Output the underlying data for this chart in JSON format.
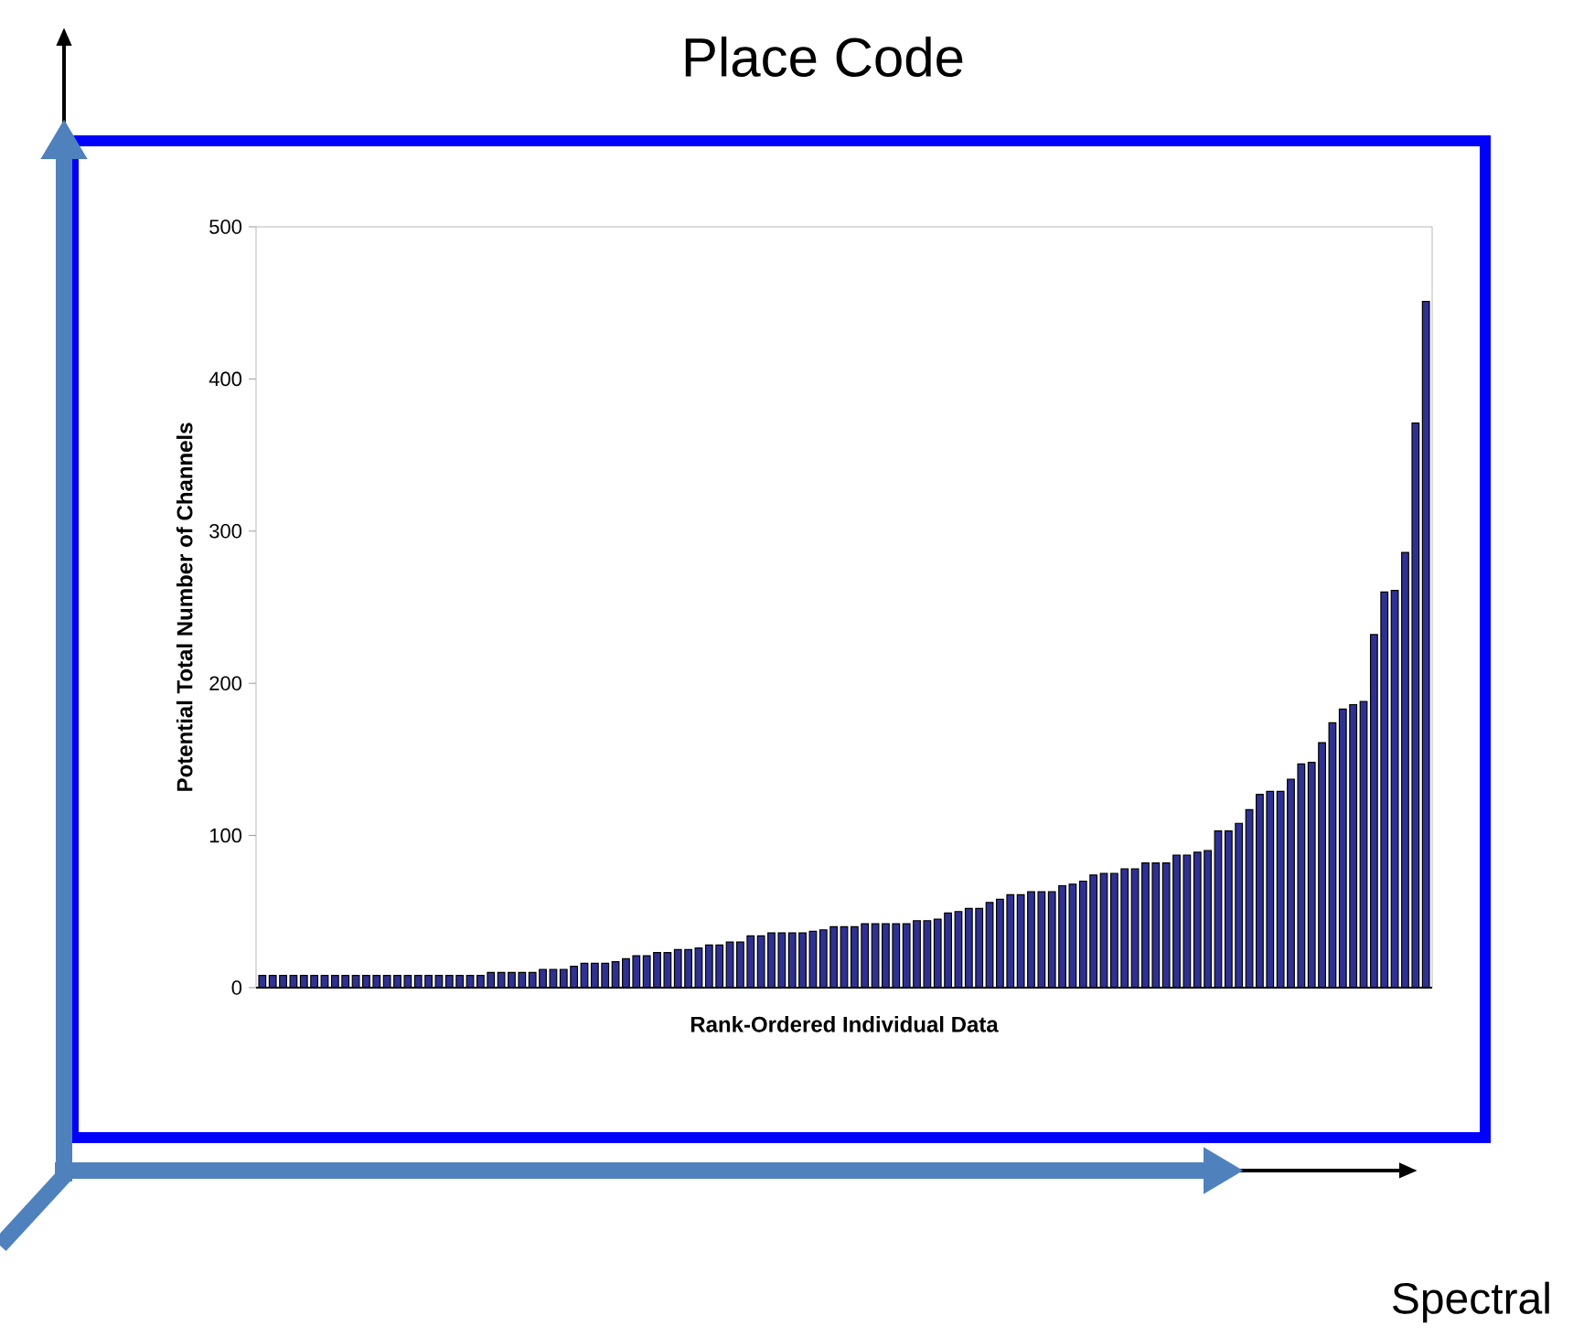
{
  "chart_data": {
    "type": "bar",
    "title": "Place Code",
    "xlabel": "Rank-Ordered Individual Data",
    "ylabel": "Potential Total Number of Channels",
    "annotations": [
      "Spectral"
    ],
    "categories": [
      null,
      null,
      null,
      null,
      null,
      null,
      null,
      null,
      null,
      null,
      null,
      null,
      null,
      null,
      null,
      null,
      null,
      null,
      null,
      null,
      null,
      null,
      null,
      null,
      null,
      null,
      null,
      null,
      null,
      null,
      null,
      null,
      null,
      null,
      null,
      null,
      null,
      null,
      null,
      null,
      null,
      null,
      null,
      null,
      null,
      null,
      null,
      null,
      null,
      null,
      null,
      null,
      null,
      null,
      null,
      null,
      null,
      null,
      null,
      null,
      null,
      null,
      null,
      null,
      null,
      null,
      null,
      null,
      null,
      null,
      null,
      null,
      null,
      null,
      null,
      null,
      null,
      null,
      null,
      null,
      null,
      null,
      null,
      null,
      null,
      null,
      null,
      null,
      null,
      null,
      null,
      null,
      null,
      null,
      null,
      null,
      null,
      null,
      null,
      null,
      null,
      null,
      null,
      null,
      null,
      null,
      null,
      null,
      null,
      null,
      null,
      null,
      null
    ],
    "values": [
      8,
      8,
      8,
      8,
      8,
      8,
      8,
      8,
      8,
      8,
      8,
      8,
      8,
      8,
      8,
      8,
      8,
      8,
      8,
      8,
      8,
      8,
      10,
      10,
      10,
      10,
      10,
      12,
      12,
      12,
      14,
      16,
      16,
      16,
      17,
      19,
      21,
      21,
      23,
      23,
      25,
      25,
      26,
      28,
      28,
      30,
      30,
      34,
      34,
      36,
      36,
      36,
      36,
      37,
      38,
      40,
      40,
      40,
      42,
      42,
      42,
      42,
      42,
      44,
      44,
      45,
      49,
      50,
      52,
      52,
      56,
      58,
      61,
      61,
      63,
      63,
      63,
      67,
      68,
      70,
      74,
      75,
      75,
      78,
      78,
      82,
      82,
      82,
      87,
      87,
      89,
      90,
      103,
      103,
      108,
      117,
      127,
      129,
      129,
      137,
      147,
      148,
      161,
      174,
      183,
      186,
      188,
      232,
      260,
      261,
      286,
      371,
      451
    ],
    "color": "#2e3192",
    "ylim": [
      0,
      500
    ],
    "yticks": [
      0,
      100,
      200,
      300,
      400,
      500
    ],
    "grid": false
  }
}
